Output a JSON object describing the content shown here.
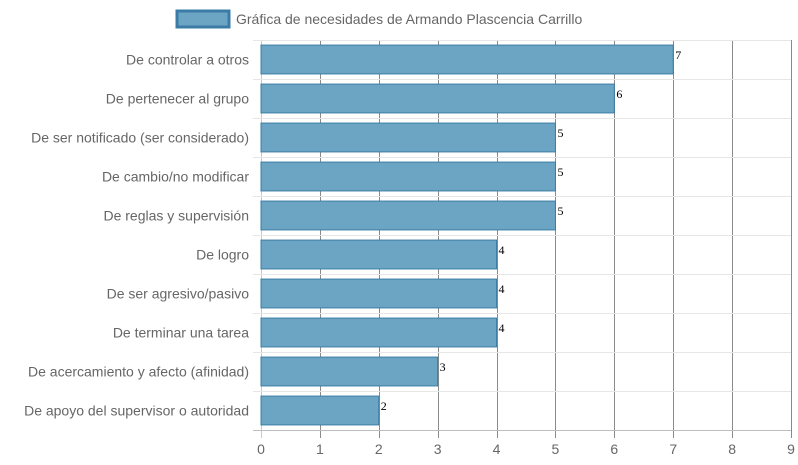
{
  "chart_data": {
    "type": "bar",
    "orientation": "horizontal",
    "categories": [
      "De controlar a otros",
      "De pertenecer al grupo",
      "De ser notificado (ser considerado)",
      "De cambio/no modificar",
      "De reglas y supervisión",
      "De logro",
      "De ser agresivo/pasivo",
      "De terminar una tarea",
      "De acercamiento y afecto (afinidad)",
      "De apoyo del supervisor o autoridad"
    ],
    "series": [
      {
        "name": "Gráfica de necesidades de Armando Plascencia Carrillo",
        "values": [
          7,
          6,
          5,
          5,
          5,
          4,
          4,
          4,
          3,
          2
        ],
        "color": "#6ca5c4",
        "border_color": "#3a7ca5"
      }
    ],
    "xlim": [
      0,
      9
    ],
    "x_ticks": [
      "0",
      "1",
      "2",
      "3",
      "4",
      "5",
      "6",
      "7",
      "8",
      "9"
    ],
    "data_labels": [
      "7",
      "6",
      "5",
      "5",
      "5",
      "4",
      "4",
      "4",
      "3",
      "2"
    ],
    "grid": true,
    "legend_position": "top"
  }
}
